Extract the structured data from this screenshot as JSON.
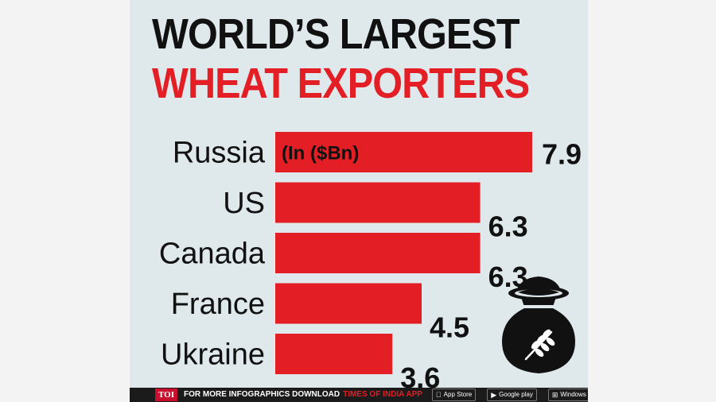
{
  "title": {
    "line1": "WORLD’S LARGEST",
    "line2": "WHEAT EXPORTERS"
  },
  "colors": {
    "bar": "#e31e24",
    "title_accent": "#e31e24",
    "title_dark": "#111111",
    "background": "#dfe9ec",
    "icon": "#111111"
  },
  "chart_data": {
    "type": "bar",
    "orientation": "horizontal",
    "title": "WORLD’S LARGEST WHEAT EXPORTERS",
    "unit_note": "(In ($Bn)",
    "categories": [
      "Russia",
      "US",
      "Canada",
      "France",
      "Ukraine"
    ],
    "values": [
      7.9,
      6.3,
      6.3,
      4.5,
      3.6
    ],
    "value_labels": [
      "7.9",
      "6.3",
      "6.3",
      "4.5",
      "3.6"
    ],
    "xlim": [
      0,
      7.9
    ],
    "grid": false,
    "legend": "none"
  },
  "icon": {
    "name": "wheat-sack-icon"
  },
  "footer": {
    "logo": "TOI",
    "text1": "FOR MORE  INFOGRAPHICS DOWNLOAD",
    "text2": "TIMES OF INDIA  APP",
    "badges": [
      {
        "name": "app-store",
        "label": "App Store",
        "glyph": ""
      },
      {
        "name": "google-play",
        "label": "Google play",
        "glyph": "▶"
      },
      {
        "name": "windows-phone",
        "label": "Windows Phone",
        "glyph": "⊞"
      }
    ]
  }
}
